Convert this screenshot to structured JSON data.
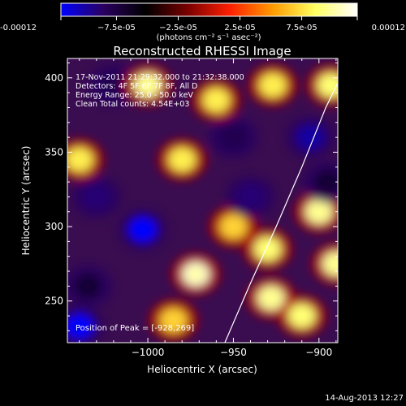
{
  "chart_data": {
    "type": "heatmap",
    "title": "Reconstructed RHESSI Image",
    "xlabel": "Heliocentric X (arcsec)",
    "ylabel": "Heliocentric Y (arcsec)",
    "xlim": [
      -1047,
      -889
    ],
    "ylim": [
      222,
      413
    ],
    "x_ticks": [
      -1000,
      -950,
      -900
    ],
    "y_ticks": [
      250,
      300,
      350,
      400
    ],
    "colorbar": {
      "range": [
        -0.00012,
        0.00012
      ],
      "tick_values": [
        -0.00012,
        -7.5e-05,
        -2.5e-05,
        2.5e-05,
        7.5e-05,
        0.00012
      ],
      "tick_labels": [
        "-0.00012",
        "−7.5e-05",
        "−2.5e-05",
        "2.5e-05",
        "7.5e-05",
        "0.00012"
      ],
      "unit": "(photons cm⁻² s⁻¹ asec⁻²)",
      "colors": [
        "#0000ff",
        "#2a0060",
        "#000000",
        "#7a0000",
        "#ff2000",
        "#ff9a00",
        "#ffff60",
        "#ffffff"
      ]
    },
    "annotations": [
      "17-Nov-2011 21:29:32.000 to 21:32:38.000",
      "Detectors: 4F 5F 6F 7F 8F, All D",
      "Energy Range: 25.0 - 50.0 keV",
      "Clean    Total counts: 4.54E+03"
    ],
    "peak_label": "Position of Peak = [-928,269]",
    "peak": {
      "x": -928,
      "y": 269
    },
    "limb_curve": [
      {
        "x": -955,
        "y": 222
      },
      {
        "x": -940,
        "y": 262
      },
      {
        "x": -925,
        "y": 300
      },
      {
        "x": -910,
        "y": 340
      },
      {
        "x": -896,
        "y": 380
      },
      {
        "x": -882,
        "y": 413
      }
    ],
    "blobs": [
      {
        "x": -1040,
        "y": 233,
        "v": -0.00012
      },
      {
        "x": -1003,
        "y": 298,
        "v": -0.00012
      },
      {
        "x": -1030,
        "y": 320,
        "v": -9e-05
      },
      {
        "x": -1020,
        "y": 395,
        "v": -8e-05
      },
      {
        "x": -1000,
        "y": 395,
        "v": 0.0001
      },
      {
        "x": -1040,
        "y": 345,
        "v": 8e-05
      },
      {
        "x": -980,
        "y": 345,
        "v": 8e-05
      },
      {
        "x": -972,
        "y": 268,
        "v": 0.00011
      },
      {
        "x": -985,
        "y": 237,
        "v": 7e-05
      },
      {
        "x": -950,
        "y": 300,
        "v": 7e-05
      },
      {
        "x": -950,
        "y": 360,
        "v": -8e-05
      },
      {
        "x": -940,
        "y": 320,
        "v": -9e-05
      },
      {
        "x": -930,
        "y": 285,
        "v": 9e-05
      },
      {
        "x": -928,
        "y": 252,
        "v": 0.0001
      },
      {
        "x": -927,
        "y": 395,
        "v": 8e-05
      },
      {
        "x": -905,
        "y": 360,
        "v": -0.0001
      },
      {
        "x": -900,
        "y": 310,
        "v": 0.0001
      },
      {
        "x": -890,
        "y": 275,
        "v": 0.0001
      },
      {
        "x": -895,
        "y": 330,
        "v": -7e-05
      },
      {
        "x": -910,
        "y": 240,
        "v": 9e-05
      },
      {
        "x": -893,
        "y": 395,
        "v": 9e-05
      },
      {
        "x": -960,
        "y": 385,
        "v": 8e-05
      },
      {
        "x": -1035,
        "y": 260,
        "v": -7e-05
      }
    ]
  },
  "timestamp": "14-Aug-2013 12:27"
}
